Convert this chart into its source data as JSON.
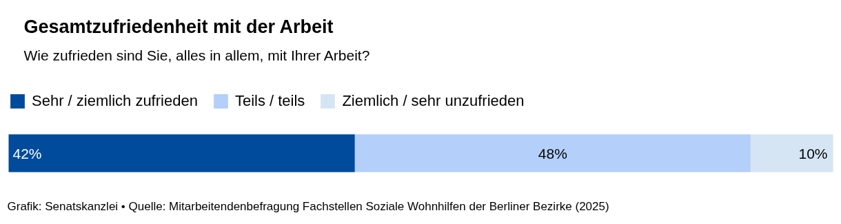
{
  "chart_data": {
    "type": "bar",
    "orientation": "horizontal",
    "stacked": true,
    "title": "Gesamtzufriedenheit mit der Arbeit",
    "subtitle": "Wie zufrieden sind Sie, alles in allem, mit Ihrer Arbeit?",
    "categories": [
      null
    ],
    "series": [
      {
        "name": "Sehr / ziemlich zufrieden",
        "color": "#004b9b",
        "values": [
          42
        ],
        "value_labels": [
          "42%"
        ]
      },
      {
        "name": "Teils / teils",
        "color": "#b3cffa",
        "values": [
          48
        ],
        "value_labels": [
          "48%"
        ]
      },
      {
        "name": "Ziemlich / sehr unzufrieden",
        "color": "#d6e5f3",
        "values": [
          10
        ],
        "value_labels": [
          "10%"
        ]
      }
    ],
    "xlim": [
      0,
      100
    ],
    "tick_labels": false,
    "grid": false,
    "legend": "top left",
    "annotations": [
      "Grafik: Senatskanzlei • Quelle: Mitarbeitendenbefragung Fachstellen Soziale Wohnhilfen der Berliner Bezirke (2025)"
    ]
  }
}
